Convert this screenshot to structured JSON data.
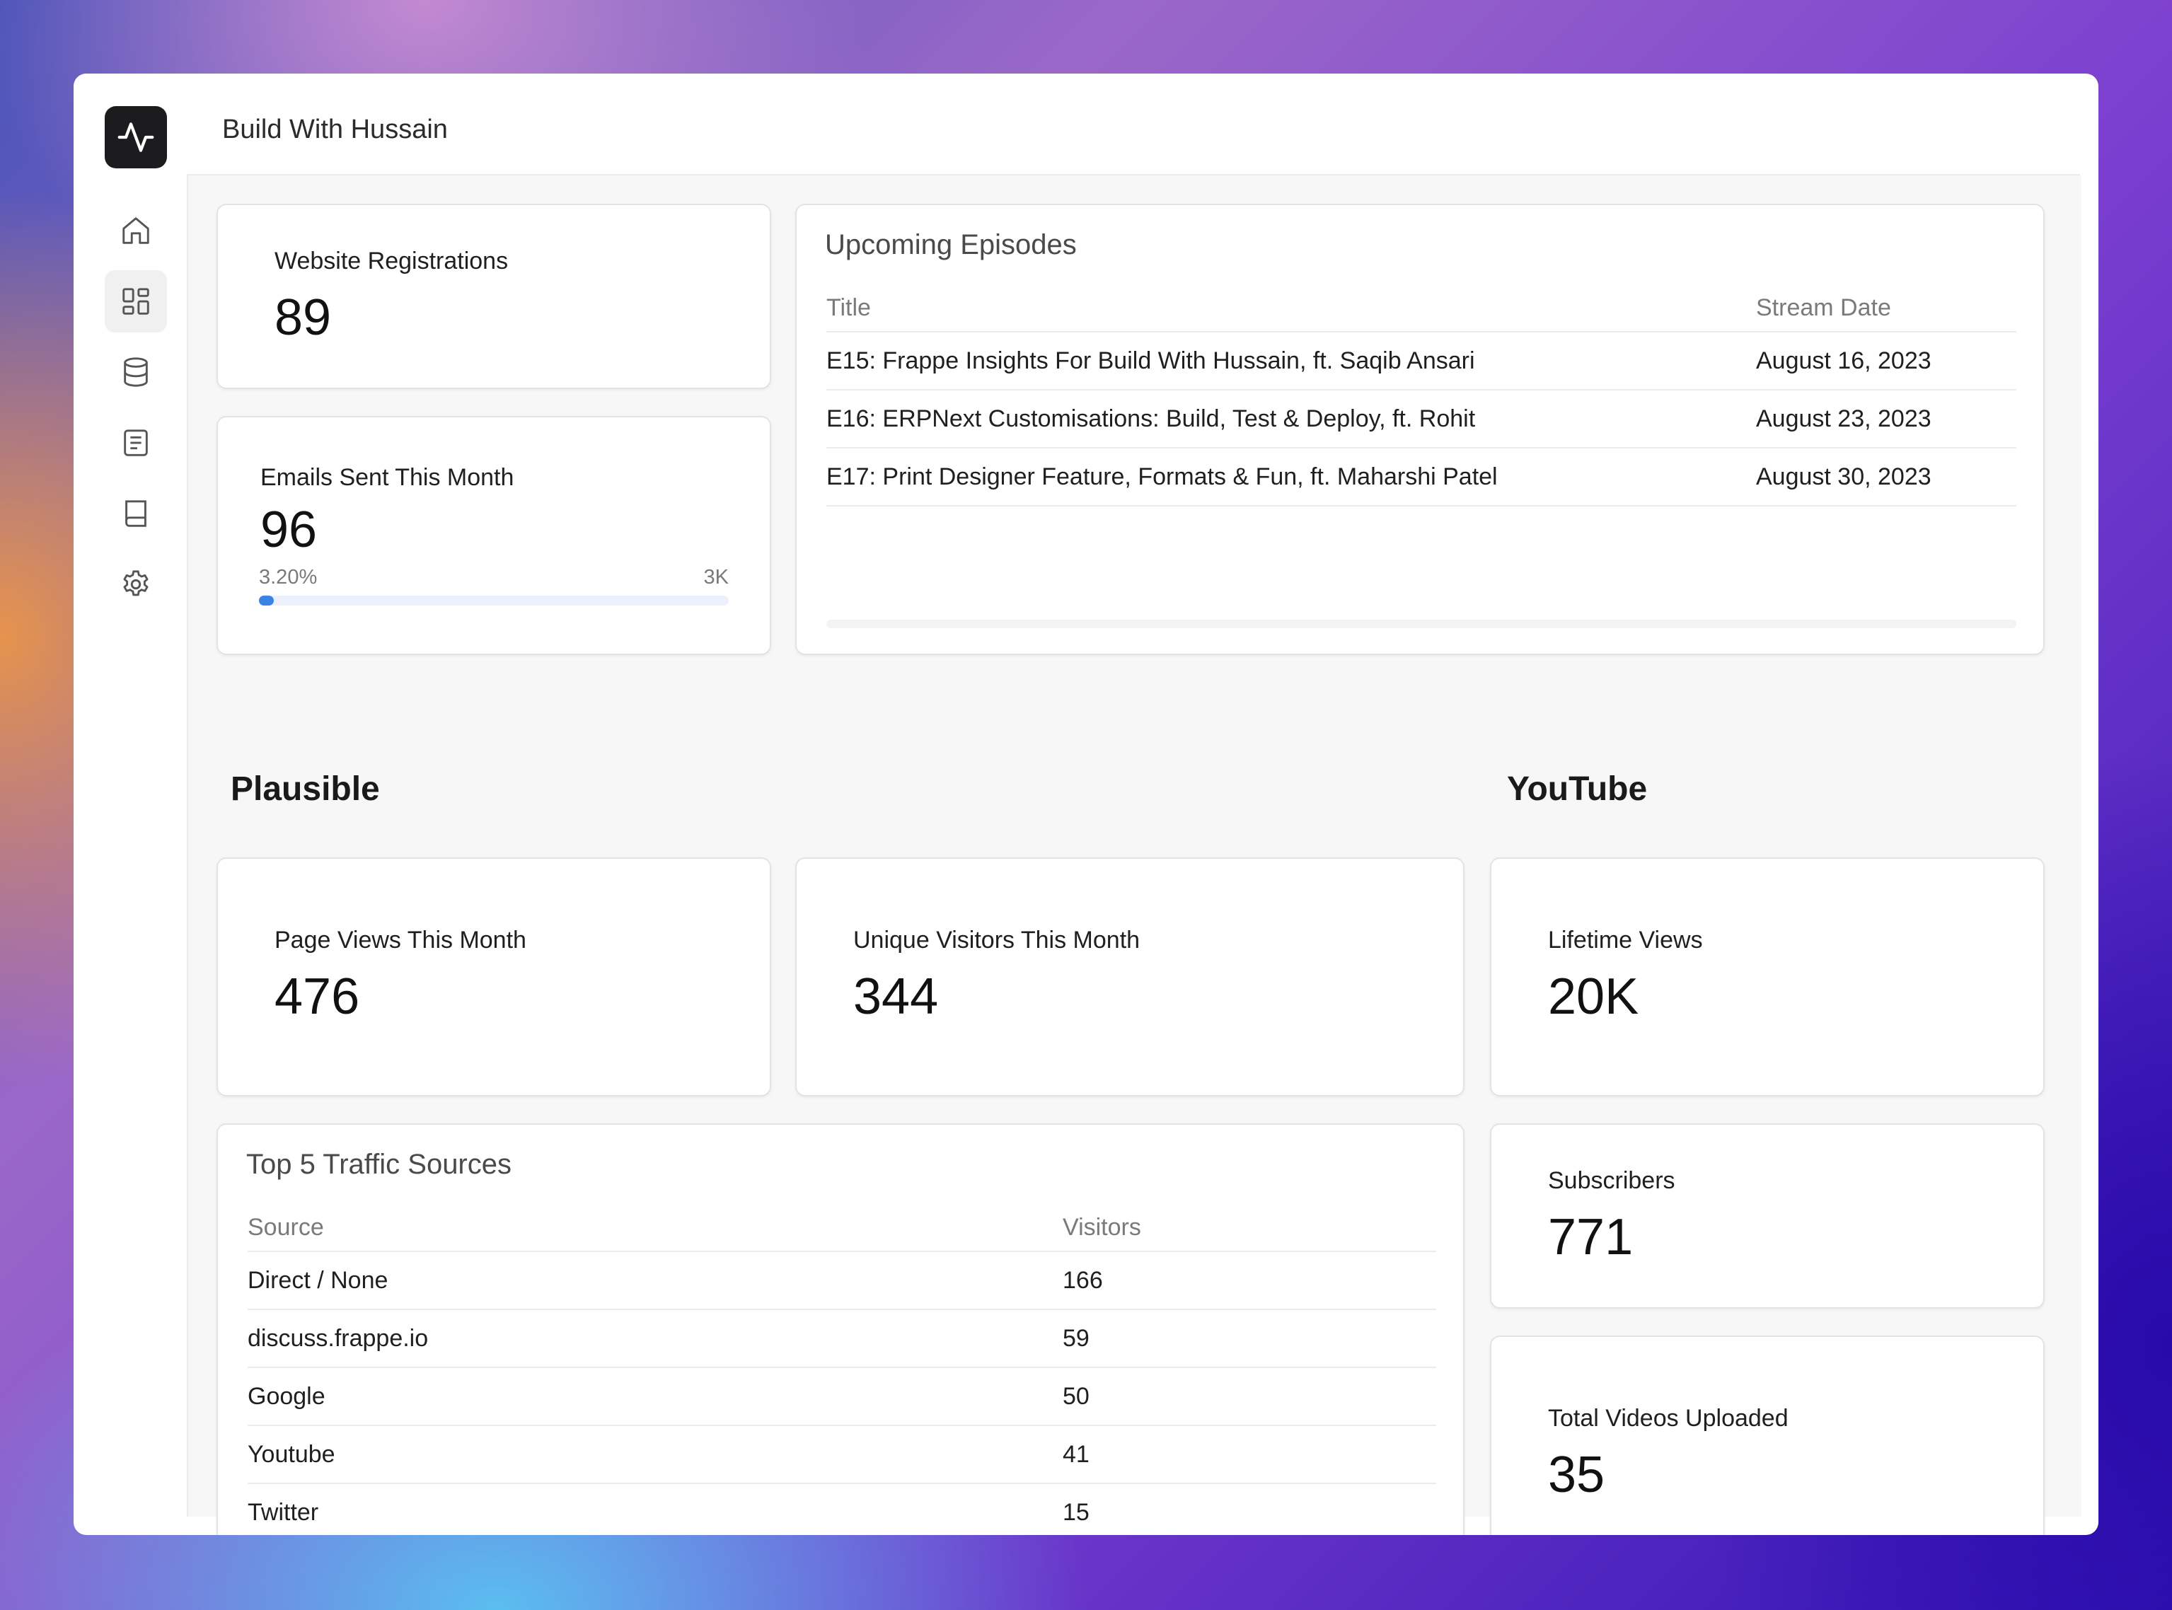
{
  "app": {
    "title": "Build With Hussain"
  },
  "sidebar": {
    "items": [
      {
        "icon": "home-icon"
      },
      {
        "icon": "dashboard-icon"
      },
      {
        "icon": "database-icon"
      },
      {
        "icon": "document-icon"
      },
      {
        "icon": "book-icon"
      },
      {
        "icon": "gear-icon"
      }
    ]
  },
  "cards": {
    "registrations": {
      "label": "Website Registrations",
      "value": "89"
    },
    "emails": {
      "label": "Emails Sent This Month",
      "value": "96",
      "progress_text": "3.20%",
      "target": "3K",
      "progress_fraction": 0.032
    },
    "page_views": {
      "label": "Page Views This Month",
      "value": "476"
    },
    "unique_visitors": {
      "label": "Unique Visitors This Month",
      "value": "344"
    },
    "lifetime_views": {
      "label": "Lifetime Views",
      "value": "20K"
    },
    "subscribers": {
      "label": "Subscribers",
      "value": "771"
    },
    "videos": {
      "label": "Total Videos Uploaded",
      "value": "35"
    }
  },
  "episodes": {
    "title": "Upcoming Episodes",
    "headers": {
      "title": "Title",
      "date": "Stream Date"
    },
    "rows": [
      {
        "title": "E15: Frappe Insights For Build With Hussain, ft. Saqib Ansari",
        "date": "August 16, 2023"
      },
      {
        "title": "E16: ERPNext Customisations: Build, Test & Deploy, ft. Rohit",
        "date": "August 23, 2023"
      },
      {
        "title": "E17: Print Designer Feature, Formats & Fun, ft. Maharshi Patel",
        "date": "August 30, 2023"
      }
    ]
  },
  "sections": {
    "plausible": "Plausible",
    "youtube": "YouTube"
  },
  "traffic": {
    "title": "Top 5 Traffic Sources",
    "headers": {
      "source": "Source",
      "visitors": "Visitors"
    },
    "rows": [
      {
        "source": "Direct / None",
        "visitors": "166"
      },
      {
        "source": "discuss.frappe.io",
        "visitors": "59"
      },
      {
        "source": "Google",
        "visitors": "50"
      },
      {
        "source": "Youtube",
        "visitors": "41"
      },
      {
        "source": "Twitter",
        "visitors": "15"
      }
    ]
  },
  "colors": {
    "accent": "#3b82e6",
    "logo_bg": "#1c1c1e"
  }
}
